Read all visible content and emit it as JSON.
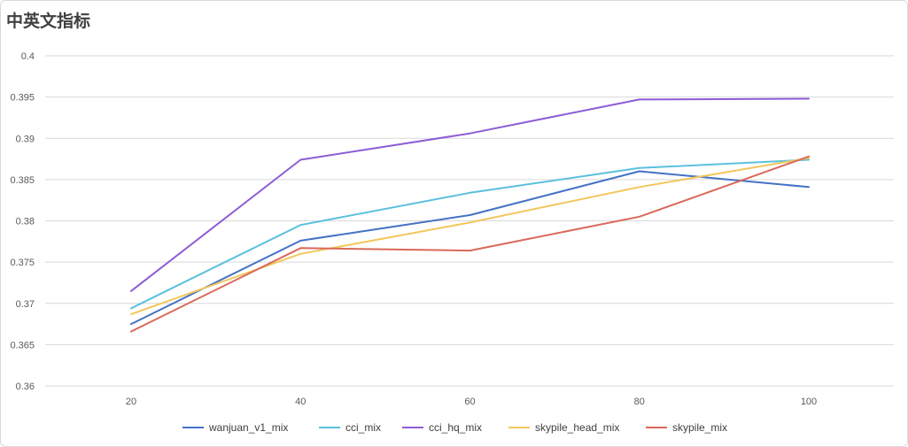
{
  "chart_data": {
    "type": "line",
    "title": "中英文指标",
    "xlabel": "",
    "ylabel": "",
    "categories": [
      "20",
      "40",
      "60",
      "80",
      "100"
    ],
    "ylim": [
      0.36,
      0.4
    ],
    "yticks": [
      "0.4",
      "0.395",
      "0.39",
      "0.385",
      "0.38",
      "0.375",
      "0.37",
      "0.365",
      "0.36"
    ],
    "grid": true,
    "legend_position": "bottom",
    "series": [
      {
        "name": "wanjuan_v1_mix",
        "color": "#4472c4",
        "values": [
          0.3675,
          0.3776,
          0.3807,
          0.386,
          0.3841
        ]
      },
      {
        "name": "cci_mix",
        "color": "#5bc0de",
        "values": [
          0.3694,
          0.3795,
          0.3834,
          0.3864,
          0.3874
        ]
      },
      {
        "name": "cci_hq_mix",
        "color": "#8e5cd6",
        "values": [
          0.3715,
          0.3874,
          0.3906,
          0.3947,
          0.3948
        ]
      },
      {
        "name": "skypile_head_mix",
        "color": "#f2c75c",
        "values": [
          0.3687,
          0.376,
          0.3798,
          0.3841,
          0.3876
        ]
      },
      {
        "name": "skypile_mix",
        "color": "#d9695a",
        "values": [
          0.3666,
          0.3767,
          0.3764,
          0.3805,
          0.3878
        ]
      }
    ]
  }
}
